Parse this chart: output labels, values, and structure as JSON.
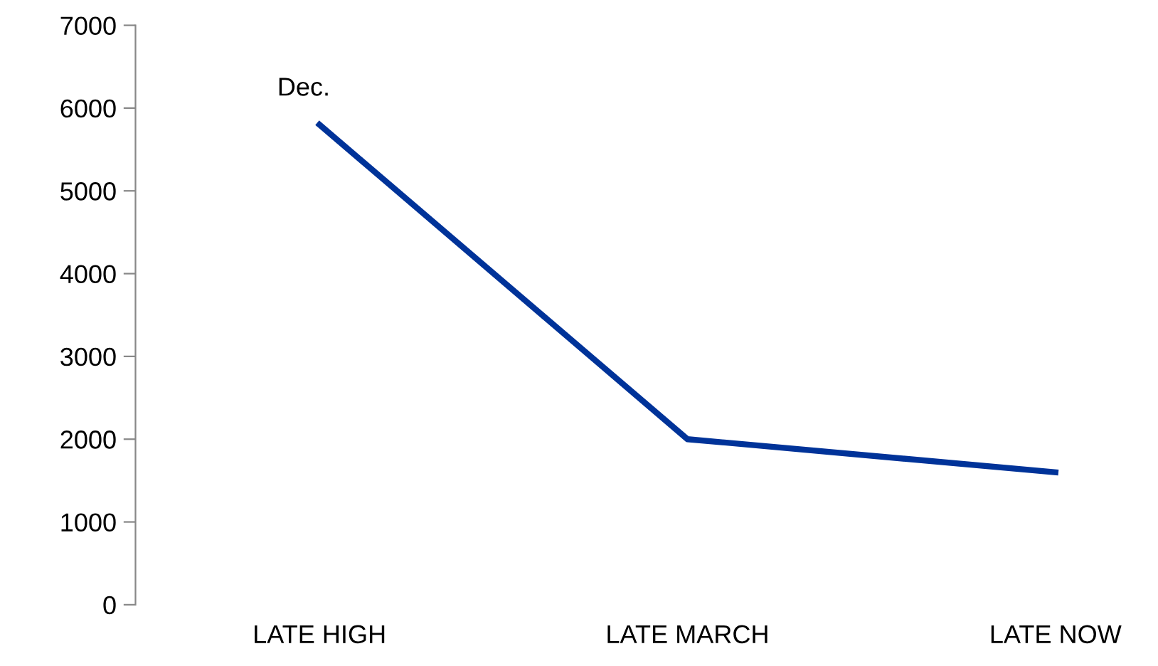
{
  "chart_data": {
    "type": "line",
    "categories": [
      "LATE HIGH",
      "LATE MARCH",
      "LATE NOW"
    ],
    "series": [
      {
        "color": "#003399",
        "values": [
          5800,
          2000,
          1600
        ]
      }
    ],
    "ylim": [
      0,
      7000
    ],
    "yticks": [
      0,
      1000,
      2000,
      3000,
      4000,
      5000,
      6000,
      7000
    ],
    "annotations": [
      {
        "text": "Dec.",
        "x": "LATE HIGH",
        "y": 5800
      }
    ],
    "grid": false,
    "marker": "none",
    "line_style": "solid"
  }
}
